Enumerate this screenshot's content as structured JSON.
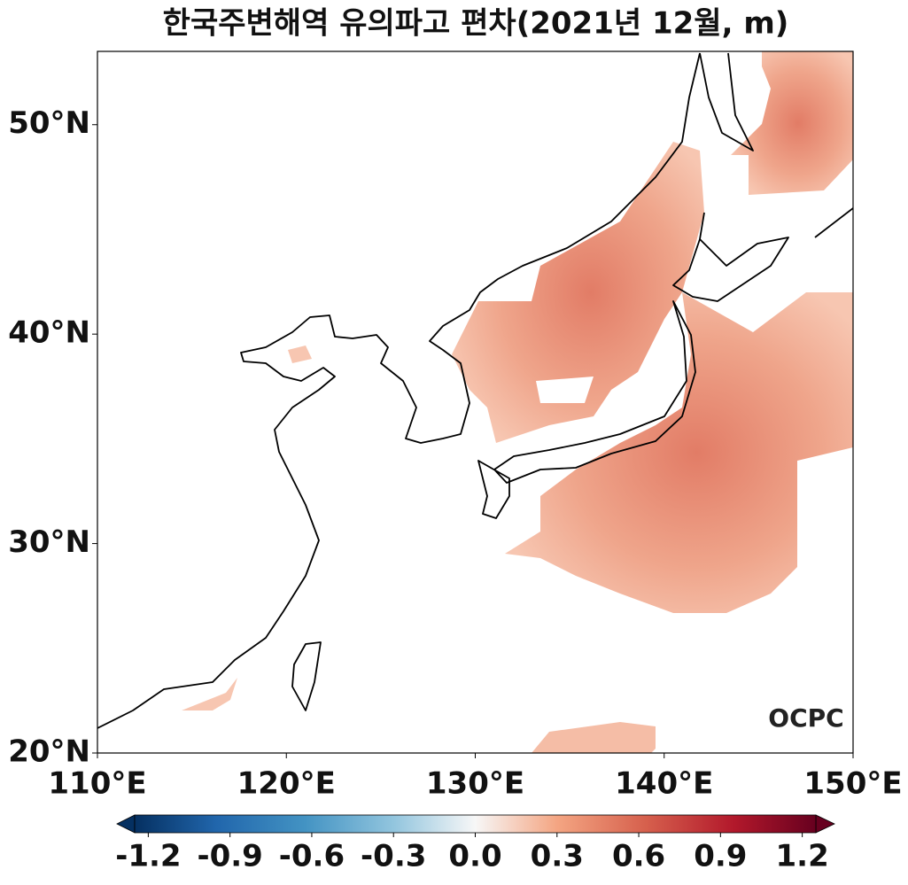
{
  "title": "한국주변해역 유의파고 편차(2021년 12월, m)",
  "map": {
    "xlim": [
      110,
      150
    ],
    "ylim": [
      20,
      53.5
    ],
    "xticks": [
      {
        "value": 110,
        "label": "110°E"
      },
      {
        "value": 120,
        "label": "120°E"
      },
      {
        "value": 130,
        "label": "130°E"
      },
      {
        "value": 140,
        "label": "140°E"
      },
      {
        "value": 150,
        "label": "150°E"
      }
    ],
    "yticks": [
      {
        "value": 20,
        "label": "20°N"
      },
      {
        "value": 30,
        "label": "30°N"
      },
      {
        "value": 40,
        "label": "40°N"
      },
      {
        "value": 50,
        "label": "50°N"
      }
    ]
  },
  "colorbar": {
    "clim": [
      -1.25,
      1.25
    ],
    "ticks": [
      -1.2,
      -0.9,
      -0.6,
      -0.3,
      {
        "value": 0,
        "label": "0.0"
      },
      0.3,
      0.6,
      0.9,
      1.2
    ]
  },
  "logo": "OCPC"
}
